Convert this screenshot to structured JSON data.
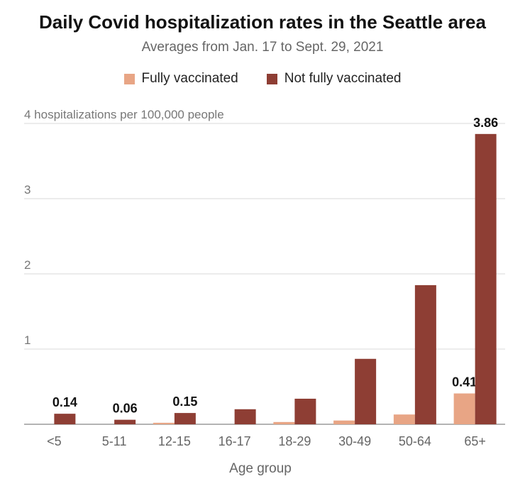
{
  "chart_data": {
    "type": "bar",
    "title": "Daily Covid hospitalization rates in the Seattle area",
    "subtitle": "Averages from Jan. 17 to Sept. 29, 2021",
    "xlabel": "Age group",
    "ylabel": "4 hospitalizations per 100,000 people",
    "ylim": [
      0,
      4
    ],
    "yticks": [
      {
        "value": 1,
        "label": "1"
      },
      {
        "value": 2,
        "label": "2"
      },
      {
        "value": 3,
        "label": "3"
      },
      {
        "value": 4,
        "label": "4 hospitalizations per 100,000 people"
      }
    ],
    "grid": true,
    "legend_placement": "top-center",
    "categories": [
      "<5",
      "5-11",
      "12-15",
      "16-17",
      "18-29",
      "30-49",
      "50-64",
      "65+"
    ],
    "series": [
      {
        "name": "Fully vaccinated",
        "color": "#E8A585",
        "values": [
          0,
          0,
          0.02,
          0,
          0.03,
          0.05,
          0.13,
          0.41
        ],
        "labels": [
          "",
          "",
          "",
          "",
          "",
          "",
          "",
          "0.41"
        ]
      },
      {
        "name": "Not fully vaccinated",
        "color": "#8E3E34",
        "values": [
          0.14,
          0.06,
          0.15,
          0.2,
          0.34,
          0.87,
          1.85,
          3.86
        ],
        "labels": [
          "0.14",
          "0.06",
          "0.15",
          "",
          "",
          "",
          "",
          "3.86"
        ]
      }
    ]
  }
}
